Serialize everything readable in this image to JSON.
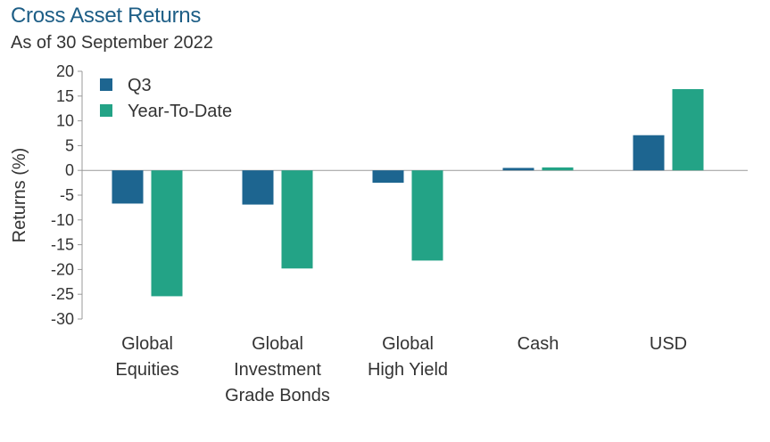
{
  "title": "Cross Asset Returns",
  "subtitle": "As of 30 September 2022",
  "chart_data": {
    "type": "bar",
    "categories": [
      [
        "Global",
        "Equities"
      ],
      [
        "Global",
        "Investment",
        "Grade Bonds"
      ],
      [
        "Global",
        "High Yield"
      ],
      [
        "Cash"
      ],
      [
        "USD"
      ]
    ],
    "series": [
      {
        "name": "Q3",
        "color": "#1d6590",
        "values": [
          -6.7,
          -6.9,
          -2.5,
          0.5,
          7.1
        ]
      },
      {
        "name": "Year-To-Date",
        "color": "#23a386",
        "values": [
          -25.4,
          -19.8,
          -18.2,
          0.6,
          16.4
        ]
      }
    ],
    "ylabel": "Returns (%)",
    "xlabel": "",
    "ylim": [
      -30,
      20
    ],
    "yticks": [
      20,
      15,
      10,
      5,
      0,
      -5,
      -10,
      -15,
      -20,
      -25,
      -30
    ],
    "grid": false,
    "legend": "top-left"
  }
}
